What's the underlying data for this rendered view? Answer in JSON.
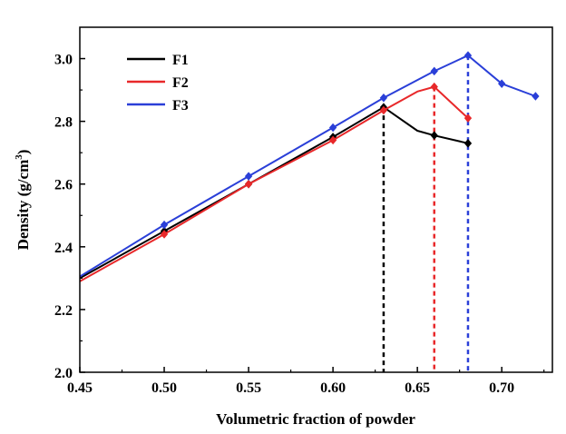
{
  "chart_data": {
    "type": "line",
    "xlabel": "Volumetric fraction of powder",
    "ylabel": "Density (g/cm",
    "ylabel_sup": "3",
    "ylabel_close": ")",
    "xlim": [
      0.45,
      0.73
    ],
    "ylim": [
      2.0,
      3.1
    ],
    "xticks": [
      0.45,
      0.5,
      0.55,
      0.6,
      0.65,
      0.7
    ],
    "xtick_labels": [
      "0.45",
      "0.50",
      "0.55",
      "0.60",
      "0.65",
      "0.70"
    ],
    "yticks": [
      2.0,
      2.2,
      2.4,
      2.6,
      2.8,
      3.0
    ],
    "ytick_labels": [
      "2.0",
      "2.2",
      "2.4",
      "2.6",
      "2.8",
      "3.0"
    ],
    "legend_position": "top-left",
    "series": [
      {
        "name": "F1",
        "color": "#000000",
        "x": [
          0.45,
          0.5,
          0.55,
          0.6,
          0.63,
          0.65,
          0.66,
          0.68
        ],
        "y": [
          2.3,
          2.45,
          2.6,
          2.75,
          2.845,
          2.77,
          2.755,
          2.73
        ],
        "markers": [
          0.5,
          0.55,
          0.6,
          0.63,
          0.66,
          0.68
        ],
        "drop_x": 0.63,
        "drop_y": 2.845
      },
      {
        "name": "F2",
        "color": "#e8282a",
        "x": [
          0.45,
          0.5,
          0.55,
          0.6,
          0.63,
          0.65,
          0.66,
          0.68
        ],
        "y": [
          2.29,
          2.44,
          2.6,
          2.74,
          2.835,
          2.895,
          2.91,
          2.81
        ],
        "markers": [
          0.5,
          0.55,
          0.6,
          0.63,
          0.66,
          0.68
        ],
        "drop_x": 0.66,
        "drop_y": 2.91
      },
      {
        "name": "F3",
        "color": "#2a3fd8",
        "x": [
          0.45,
          0.5,
          0.55,
          0.6,
          0.63,
          0.66,
          0.68,
          0.7,
          0.72
        ],
        "y": [
          2.305,
          2.47,
          2.625,
          2.78,
          2.875,
          2.96,
          3.01,
          2.92,
          2.88
        ],
        "markers": [
          0.5,
          0.55,
          0.6,
          0.63,
          0.66,
          0.68,
          0.7,
          0.72
        ],
        "drop_x": 0.68,
        "drop_y": 3.01
      }
    ]
  }
}
